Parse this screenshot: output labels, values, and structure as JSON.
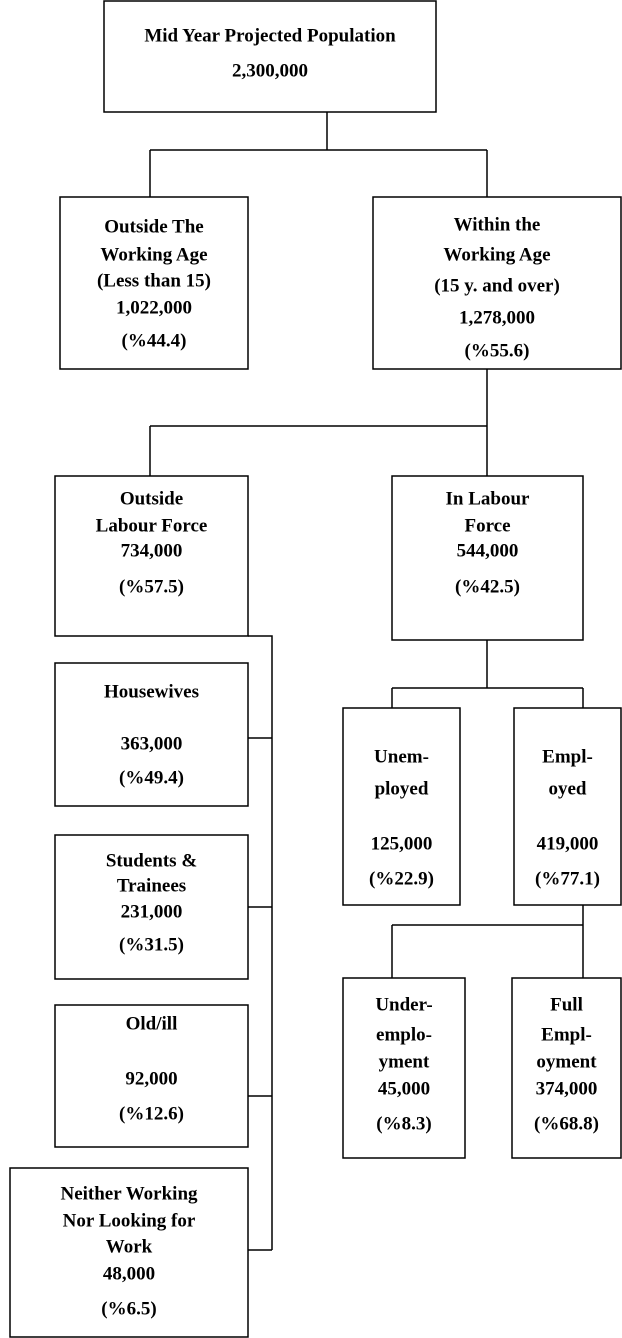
{
  "nodes": [
    {
      "lines": [
        "Mid Year Projected Population",
        "2,300,000"
      ]
    },
    {
      "lines": [
        "Outside The",
        "Working Age",
        "(Less than 15)",
        "1,022,000",
        "(%44.4)"
      ]
    },
    {
      "lines": [
        "Within the",
        "Working Age",
        "(15 y. and over)",
        "1,278,000",
        "(%55.6)"
      ]
    },
    {
      "lines": [
        "Outside",
        "Labour Force",
        "734,000",
        "(%57.5)"
      ]
    },
    {
      "lines": [
        "In Labour",
        "Force",
        "544,000",
        "(%42.5)"
      ]
    },
    {
      "lines": [
        "Housewives",
        "363,000",
        "(%49.4)"
      ]
    },
    {
      "lines": [
        "Students &",
        "Trainees",
        "231,000",
        "(%31.5)"
      ]
    },
    {
      "lines": [
        "Old/ill",
        "92,000",
        "(%12.6)"
      ]
    },
    {
      "lines": [
        "Neither Working",
        "Nor Looking for",
        "Work",
        "48,000",
        "(%6.5)"
      ]
    },
    {
      "lines": [
        "Unem-",
        "ployed",
        "125,000",
        "(%22.9)"
      ]
    },
    {
      "lines": [
        "Empl-",
        "oyed",
        "419,000",
        "(%77.1)"
      ]
    },
    {
      "lines": [
        "Under-",
        "emplo-",
        "yment",
        "45,000",
        "(%8.3)"
      ]
    },
    {
      "lines": [
        "Full",
        "Empl-",
        "oyment",
        "374,000",
        "(%68.8)"
      ]
    }
  ]
}
